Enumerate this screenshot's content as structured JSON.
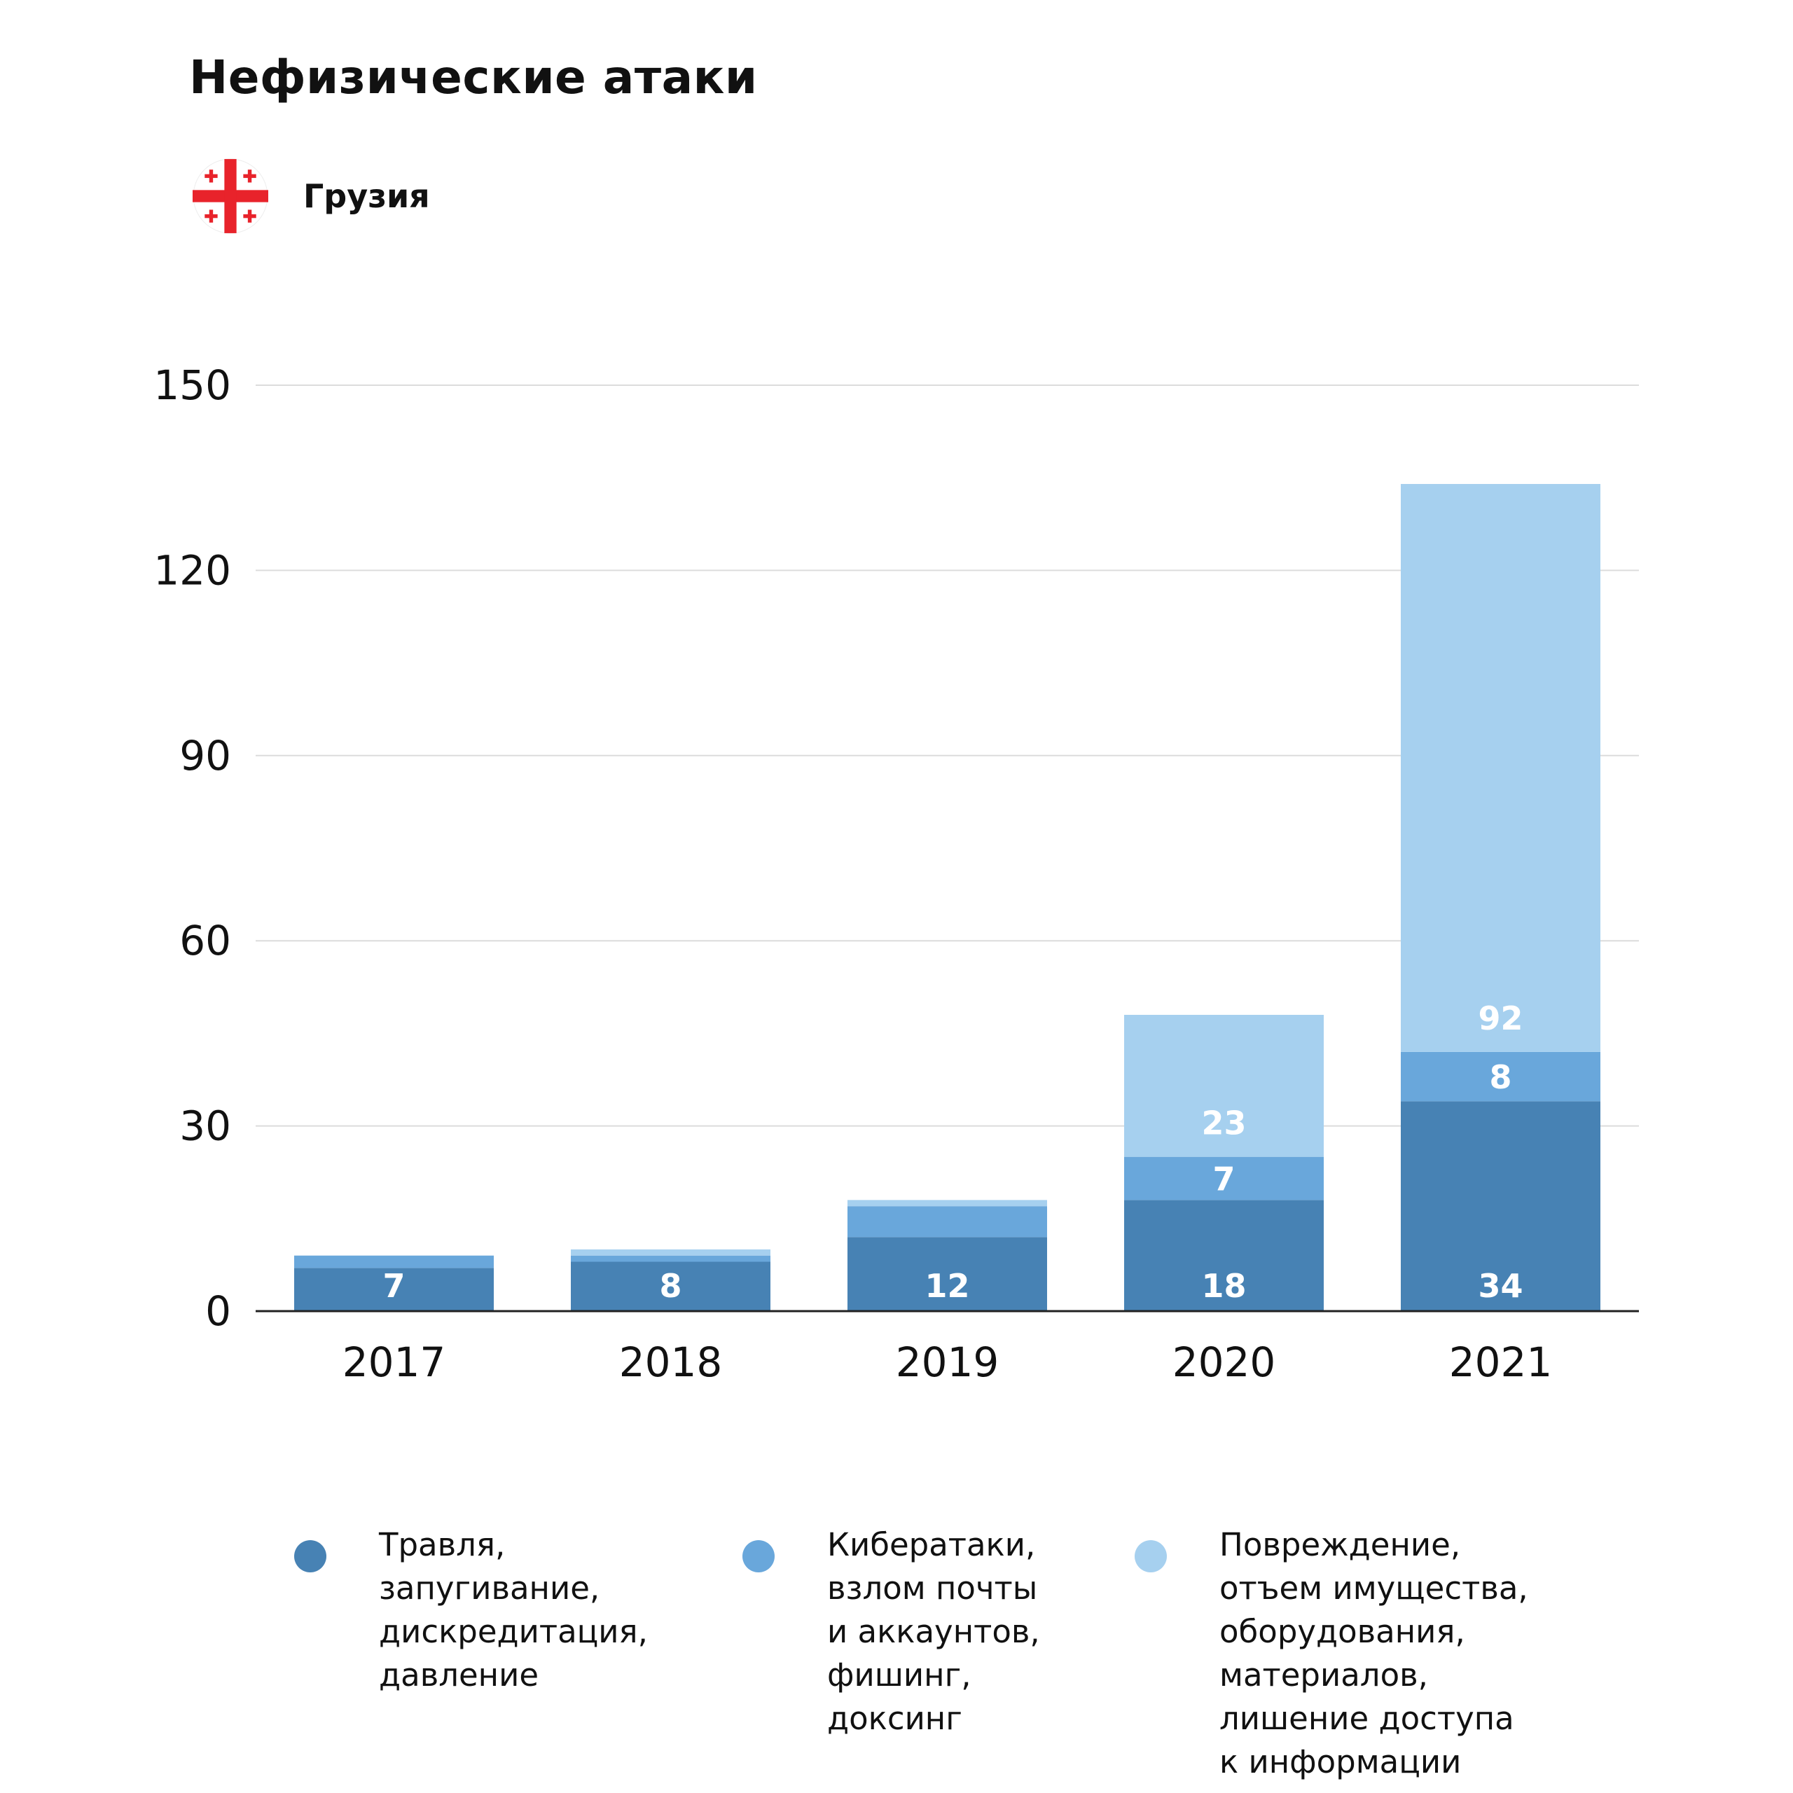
{
  "title": "Нефизические атаки",
  "country": {
    "name": "Грузия",
    "flag_icon": "georgia-flag-icon",
    "flag_colors": {
      "cross": "#e8232b",
      "field": "#ffffff"
    }
  },
  "colors": {
    "series1": "#4782b4",
    "series2": "#69a7db",
    "series3": "#a6d0ef",
    "grid": "#dcdcdc",
    "axis": "#222222"
  },
  "chart_data": {
    "type": "bar",
    "stacked": true,
    "categories": [
      "2017",
      "2018",
      "2019",
      "2020",
      "2021"
    ],
    "series": [
      {
        "name": "Травля,\nзапугивание,\nдискредитация,\nдавление",
        "values": [
          7,
          8,
          12,
          18,
          34
        ],
        "color": "#4782b4"
      },
      {
        "name": "Кибератаки,\nвзлом почты\nи аккаунтов,\nфишинг,\nдоксинг",
        "values": [
          2,
          1,
          5,
          7,
          8
        ],
        "color": "#69a7db"
      },
      {
        "name": "Повреждение,\nотъем имущества,\nоборудования,\nматериалов,\nлишение доступа\nк информации",
        "values": [
          0,
          1,
          1,
          23,
          92
        ],
        "color": "#a6d0ef"
      }
    ],
    "data_labels": [
      [
        "7",
        "8",
        "12",
        "18",
        "34"
      ],
      [
        "",
        "",
        "",
        "7",
        "8"
      ],
      [
        "",
        "",
        "",
        "23",
        "92"
      ]
    ],
    "yticks": [
      0,
      30,
      60,
      90,
      120,
      150
    ],
    "ylim": [
      0,
      150
    ],
    "grid": true,
    "legend_position": "bottom"
  }
}
